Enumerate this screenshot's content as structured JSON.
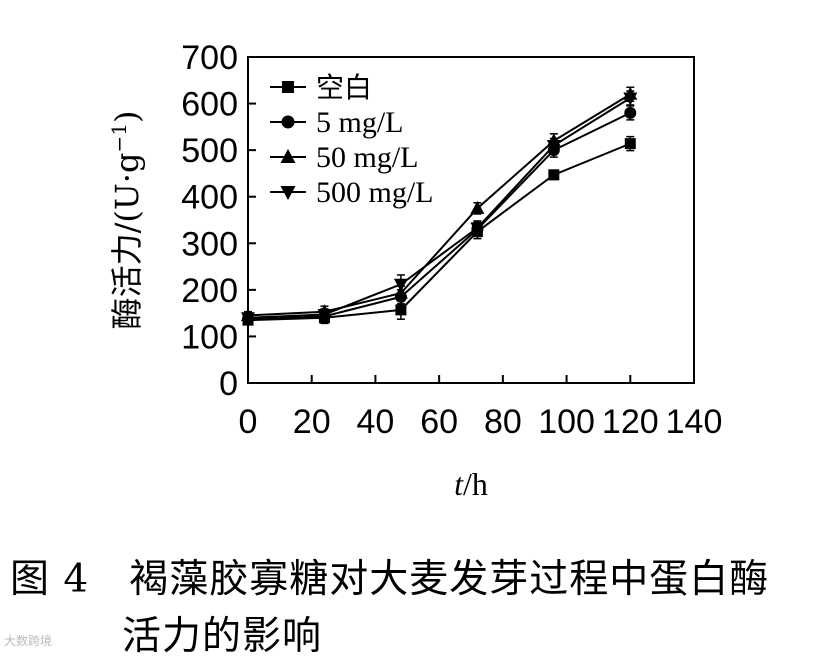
{
  "chart_data": {
    "type": "line",
    "xlabel_var": "t",
    "xlabel_unit": "/h",
    "ylabel_prefix": "酶活力/(U·g",
    "ylabel_sup": "−1",
    "ylabel_suffix": ")",
    "xlim": [
      0,
      140
    ],
    "ylim": [
      0,
      700
    ],
    "xticks": [
      0,
      20,
      40,
      60,
      80,
      100,
      120,
      140
    ],
    "yticks": [
      0,
      100,
      200,
      300,
      400,
      500,
      600,
      700
    ],
    "x": [
      0,
      24,
      48,
      72,
      96,
      120
    ],
    "legend_position": "top-left",
    "series": [
      {
        "name": "空白",
        "marker": "square",
        "values": [
          135,
          140,
          157,
          325,
          447,
          514
        ],
        "errors": [
          8,
          12,
          20,
          15,
          10,
          15
        ]
      },
      {
        "name": "5 mg/L",
        "marker": "circle",
        "values": [
          137,
          143,
          185,
          330,
          500,
          580
        ],
        "errors": [
          8,
          12,
          15,
          15,
          15,
          15
        ]
      },
      {
        "name": "50 mg/L",
        "marker": "triangle-up",
        "values": [
          145,
          153,
          193,
          375,
          520,
          620
        ],
        "errors": [
          8,
          12,
          15,
          12,
          15,
          15
        ]
      },
      {
        "name": "500 mg/L",
        "marker": "triangle-down",
        "values": [
          140,
          147,
          212,
          333,
          510,
          612
        ],
        "errors": [
          8,
          12,
          20,
          15,
          15,
          15
        ]
      }
    ]
  },
  "caption": {
    "line1": "图 4　褐藻胶寡糖对大麦发芽过程中蛋白酶",
    "line2": "活力的影响"
  },
  "watermark": "大数跨境"
}
